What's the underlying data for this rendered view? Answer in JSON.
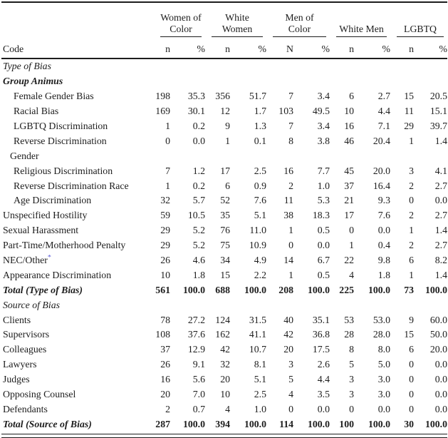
{
  "colors": {
    "text": "#1d1d1d",
    "rule": "#1d1d1d",
    "footnote_star": "#5353d6",
    "background": "#ffffff"
  },
  "table": {
    "code_header": "Code",
    "column_groups": [
      {
        "label": "Women of Color"
      },
      {
        "label": "White Women"
      },
      {
        "label": "Men of Color"
      },
      {
        "label": "White Men"
      },
      {
        "label": "LGBTQ"
      }
    ],
    "subheaders": [
      "n",
      "%",
      "n",
      "%",
      "N",
      "%",
      "n",
      "%",
      "n",
      "%"
    ],
    "rows": [
      {
        "label": "Type of Bias",
        "style": "section",
        "values": []
      },
      {
        "label": "Group Animus",
        "style": "subsection",
        "values": []
      },
      {
        "label": "Female Gender Bias",
        "style": "indent",
        "values": [
          "198",
          "35.3",
          "356",
          "51.7",
          "7",
          "3.4",
          "6",
          "2.7",
          "15",
          "20.5"
        ]
      },
      {
        "label": "Racial Bias",
        "style": "indent",
        "values": [
          "169",
          "30.1",
          "12",
          "1.7",
          "103",
          "49.5",
          "10",
          "4.4",
          "11",
          "15.1"
        ]
      },
      {
        "label": "LGBTQ Discrimination",
        "style": "indent",
        "values": [
          "1",
          "0.2",
          "9",
          "1.3",
          "7",
          "3.4",
          "16",
          "7.1",
          "29",
          "39.7"
        ]
      },
      {
        "label": "Reverse Discrimination",
        "style": "indent",
        "values": [
          "0",
          "0.0",
          "1",
          "0.1",
          "8",
          "3.8",
          "46",
          "20.4",
          "1",
          "1.4"
        ]
      },
      {
        "label": "Gender",
        "style": "cont",
        "values": []
      },
      {
        "label": "Religious Discrimination",
        "style": "indent",
        "values": [
          "7",
          "1.2",
          "17",
          "2.5",
          "16",
          "7.7",
          "45",
          "20.0",
          "3",
          "4.1"
        ]
      },
      {
        "label": "Reverse Discrimination Race",
        "style": "indent",
        "values": [
          "1",
          "0.2",
          "6",
          "0.9",
          "2",
          "1.0",
          "37",
          "16.4",
          "2",
          "2.7"
        ]
      },
      {
        "label": "Age Discrimination",
        "style": "indent",
        "values": [
          "32",
          "5.7",
          "52",
          "7.6",
          "11",
          "5.3",
          "21",
          "9.3",
          "0",
          "0.0"
        ]
      },
      {
        "label": "Unspecified Hostility",
        "style": "plain",
        "values": [
          "59",
          "10.5",
          "35",
          "5.1",
          "38",
          "18.3",
          "17",
          "7.6",
          "2",
          "2.7"
        ]
      },
      {
        "label": "Sexual Harassment",
        "style": "plain",
        "values": [
          "29",
          "5.2",
          "76",
          "11.0",
          "1",
          "0.5",
          "0",
          "0.0",
          "1",
          "1.4"
        ]
      },
      {
        "label": "Part-Time/Motherhood Penalty",
        "style": "plain",
        "values": [
          "29",
          "5.2",
          "75",
          "10.9",
          "0",
          "0.0",
          "1",
          "0.4",
          "2",
          "2.7"
        ]
      },
      {
        "label": "NEC/Other",
        "suffix": "*",
        "style": "plain",
        "values": [
          "26",
          "4.6",
          "34",
          "4.9",
          "14",
          "6.7",
          "22",
          "9.8",
          "6",
          "8.2"
        ]
      },
      {
        "label": "Appearance Discrimination",
        "style": "plain",
        "values": [
          "10",
          "1.8",
          "15",
          "2.2",
          "1",
          "0.5",
          "4",
          "1.8",
          "1",
          "1.4"
        ]
      },
      {
        "label": "Total (Type of Bias)",
        "style": "total",
        "values": [
          "561",
          "100.0",
          "688",
          "100.0",
          "208",
          "100.0",
          "225",
          "100.0",
          "73",
          "100.0"
        ]
      },
      {
        "label": "Source of Bias",
        "style": "section",
        "values": []
      },
      {
        "label": "Clients",
        "style": "plain",
        "values": [
          "78",
          "27.2",
          "124",
          "31.5",
          "40",
          "35.1",
          "53",
          "53.0",
          "9",
          "60.0"
        ]
      },
      {
        "label": "Supervisors",
        "style": "plain",
        "values": [
          "108",
          "37.6",
          "162",
          "41.1",
          "42",
          "36.8",
          "28",
          "28.0",
          "15",
          "50.0"
        ]
      },
      {
        "label": "Colleagues",
        "style": "plain",
        "values": [
          "37",
          "12.9",
          "42",
          "10.7",
          "20",
          "17.5",
          "8",
          "8.0",
          "6",
          "20.0"
        ]
      },
      {
        "label": "Lawyers",
        "style": "plain",
        "values": [
          "26",
          "9.1",
          "32",
          "8.1",
          "3",
          "2.6",
          "5",
          "5.0",
          "0",
          "0.0"
        ]
      },
      {
        "label": "Judges",
        "style": "plain",
        "values": [
          "16",
          "5.6",
          "20",
          "5.1",
          "5",
          "4.4",
          "3",
          "3.0",
          "0",
          "0.0"
        ]
      },
      {
        "label": "Opposing Counsel",
        "style": "plain",
        "values": [
          "20",
          "7.0",
          "10",
          "2.5",
          "4",
          "3.5",
          "3",
          "3.0",
          "0",
          "0.0"
        ]
      },
      {
        "label": "Defendants",
        "style": "plain",
        "values": [
          "2",
          "0.7",
          "4",
          "1.0",
          "0",
          "0.0",
          "0",
          "0.0",
          "0",
          "0.0"
        ]
      },
      {
        "label": "Total (Source of Bias)",
        "style": "total",
        "values": [
          "287",
          "100.0",
          "394",
          "100.0",
          "114",
          "100.0",
          "100",
          "100.0",
          "30",
          "100.0"
        ]
      }
    ]
  }
}
